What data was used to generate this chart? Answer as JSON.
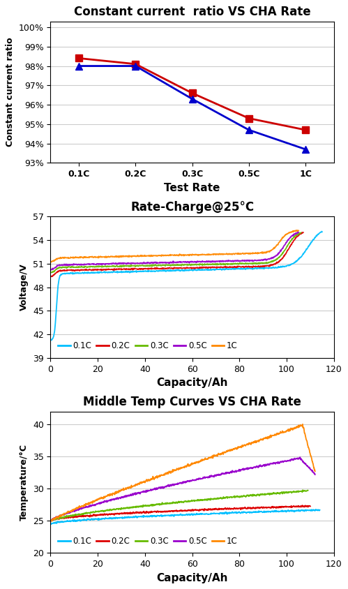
{
  "chart1": {
    "title": "Constant current  ratio VS CHA Rate",
    "xlabel": "Test Rate",
    "ylabel": "Constant current ratio",
    "xticks": [
      "0.1C",
      "0.2C",
      "0.3C",
      "0.5C",
      "1C"
    ],
    "ylim": [
      0.93,
      1.003
    ],
    "yticks": [
      0.93,
      0.94,
      0.95,
      0.96,
      0.97,
      0.98,
      0.99,
      1.0
    ],
    "series": [
      {
        "color": "#cc0000",
        "marker": "s",
        "values": [
          0.984,
          0.981,
          0.966,
          0.953,
          0.947
        ]
      },
      {
        "color": "#0000cc",
        "marker": "^",
        "values": [
          0.98,
          0.98,
          0.963,
          0.947,
          0.937
        ]
      }
    ]
  },
  "chart2": {
    "title": "Rate-Charge@25°C",
    "xlabel": "Capacity/Ah",
    "ylabel": "Voltage/V",
    "xlim": [
      0,
      120
    ],
    "ylim": [
      39,
      57
    ],
    "yticks": [
      39,
      42,
      45,
      48,
      51,
      54,
      57
    ],
    "xticks": [
      0,
      20,
      40,
      60,
      80,
      100,
      120
    ],
    "legend": [
      "0.1C",
      "0.2C",
      "0.3C",
      "0.5C",
      "1C"
    ],
    "colors": [
      "#00bfff",
      "#dd0000",
      "#66bb00",
      "#9900cc",
      "#ff8800"
    ]
  },
  "chart3": {
    "title": "Middle Temp Curves VS CHA Rate",
    "xlabel": "Capacity/Ah",
    "ylabel": "Temperature/°C",
    "xlim": [
      0,
      120
    ],
    "ylim": [
      20,
      42
    ],
    "yticks": [
      20,
      25,
      30,
      35,
      40
    ],
    "xticks": [
      0,
      20,
      40,
      60,
      80,
      100,
      120
    ],
    "legend": [
      "0.1C",
      "0.2C",
      "0.3C",
      "0.5C",
      "1C"
    ],
    "colors": [
      "#00bfff",
      "#dd0000",
      "#66bb00",
      "#9900cc",
      "#ff8800"
    ]
  },
  "bg_color": "#ffffff"
}
